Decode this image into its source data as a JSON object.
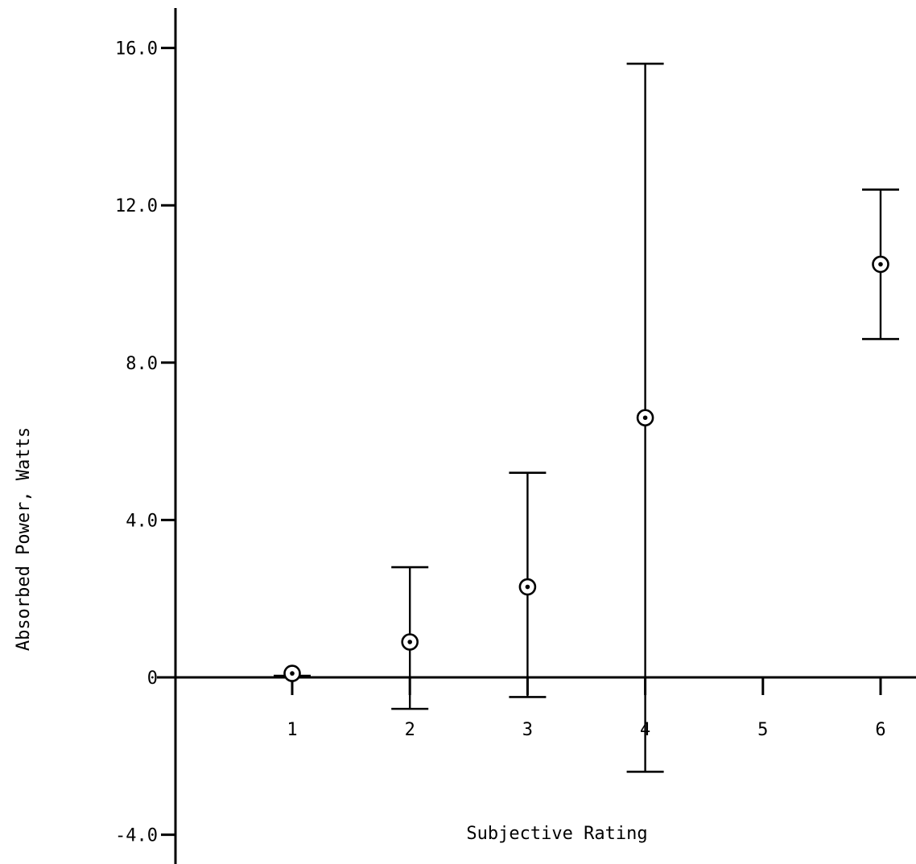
{
  "chart_data": {
    "type": "scatter",
    "title": "",
    "xlabel": "Subjective Rating",
    "ylabel": "Absorbed Power, Watts",
    "xlim": [
      0,
      6
    ],
    "ylim": [
      -4.0,
      16.0
    ],
    "grid": false,
    "x_ticks": [
      "1",
      "2",
      "3",
      "4",
      "5",
      "6"
    ],
    "y_ticks": [
      "16.0",
      "12.0",
      "8.0",
      "4.0",
      "0",
      "-4.0"
    ],
    "marker": "circled-dot",
    "error_bars": true,
    "points": [
      {
        "x": 1,
        "y": 0.1,
        "low": 0.1,
        "high": 0.1
      },
      {
        "x": 2,
        "y": 0.9,
        "low": -0.8,
        "high": 2.8
      },
      {
        "x": 3,
        "y": 2.3,
        "low": -0.5,
        "high": 5.2
      },
      {
        "x": 4,
        "y": 6.6,
        "low": -2.4,
        "high": 15.6
      },
      {
        "x": 6,
        "y": 10.5,
        "low": 8.6,
        "high": 12.4
      }
    ]
  }
}
